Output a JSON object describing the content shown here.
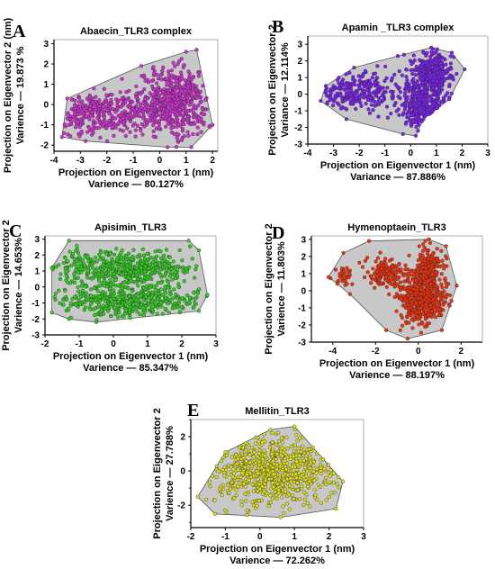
{
  "chart_data": [
    {
      "type": "scatter",
      "panel": "A",
      "title": "Abaecin_TLR3 complex",
      "xlabel": "Projection on Eigenvector 1 (nm)",
      "xlabel2": "Varience — 80.127%",
      "ylabel": "Projection on Eigenvector 2 (nm)",
      "ylabel2": "Varience — 19.873 %",
      "xlim": [
        -4,
        2.2
      ],
      "ylim": [
        -2.3,
        3.2
      ],
      "xticks": [
        -4,
        -3,
        -2,
        -1,
        0,
        1,
        2
      ],
      "yticks": [
        -2,
        -1,
        0,
        1,
        2,
        3
      ],
      "point_color": "#cc33cc",
      "hull_color": "#c8c8c8",
      "hull": [
        [
          -3.7,
          -1.6
        ],
        [
          -3.5,
          0.3
        ],
        [
          -0.7,
          1.9
        ],
        [
          1.0,
          2.6
        ],
        [
          1.4,
          2.7
        ],
        [
          2.0,
          -1.0
        ],
        [
          1.2,
          -2.1
        ],
        [
          0.3,
          -2.1
        ],
        [
          -2.8,
          -1.8
        ]
      ],
      "clusters": [
        {
          "cx": 0.6,
          "cy": 0.2,
          "sx": 0.7,
          "sy": 0.8,
          "n": 520
        },
        {
          "cx": -1.7,
          "cy": -0.4,
          "sx": 0.9,
          "sy": 0.55,
          "n": 260
        },
        {
          "cx": -3.0,
          "cy": -0.6,
          "sx": 0.45,
          "sy": 0.6,
          "n": 90
        }
      ]
    },
    {
      "type": "scatter",
      "panel": "B",
      "title": "Apamin _TLR3 complex",
      "xlabel": "Projection on Eigenvector 1 (nm)",
      "xlabel2": "Variance — 87.886%",
      "ylabel": "Projection on Eigenvector 2",
      "ylabel2": "Variance — 12.114%",
      "xlim": [
        -4,
        3
      ],
      "ylim": [
        -3,
        3.5
      ],
      "xticks": [
        -4,
        -3,
        -2,
        -1,
        0,
        1,
        2,
        3
      ],
      "yticks": [
        -3,
        -2,
        -1,
        0,
        1,
        2,
        3
      ],
      "point_color": "#7a22ee",
      "hull_color": "#c8c8c8",
      "hull": [
        [
          -3.5,
          -0.4
        ],
        [
          -3.3,
          0.5
        ],
        [
          -2.2,
          1.6
        ],
        [
          -0.5,
          2.3
        ],
        [
          0.8,
          2.8
        ],
        [
          1.6,
          2.5
        ],
        [
          2.1,
          1.5
        ],
        [
          1.5,
          -0.3
        ],
        [
          0.5,
          -1.5
        ],
        [
          0.2,
          -2.5
        ],
        [
          -0.3,
          -2.4
        ],
        [
          -2.5,
          -1.5
        ]
      ],
      "clusters": [
        {
          "cx": 0.8,
          "cy": 1.3,
          "sx": 0.4,
          "sy": 0.6,
          "n": 330
        },
        {
          "cx": 0.5,
          "cy": -0.7,
          "sx": 0.45,
          "sy": 0.7,
          "n": 300
        },
        {
          "cx": -2.0,
          "cy": 0.2,
          "sx": 0.8,
          "sy": 0.55,
          "n": 250
        }
      ]
    },
    {
      "type": "scatter",
      "panel": "C",
      "title": "Apisimin_TLR3",
      "xlabel": "Projection on Eigenvector 1 (nm)",
      "xlabel2": "Varience — 85.347%",
      "ylabel": "Projection on Eigenvector 2",
      "ylabel2": "Varience — 14.653%",
      "xlim": [
        -2,
        3
      ],
      "ylim": [
        -3,
        3.2
      ],
      "xticks": [
        -2,
        -1,
        0,
        1,
        2,
        3
      ],
      "yticks": [
        -3,
        -2,
        -1,
        0,
        1,
        2,
        3
      ],
      "point_color": "#33cc22",
      "hull_color": "#c8c8c8",
      "hull": [
        [
          -1.8,
          -1.6
        ],
        [
          -1.8,
          1.2
        ],
        [
          -1.3,
          2.9
        ],
        [
          2.2,
          2.9
        ],
        [
          2.5,
          2.3
        ],
        [
          2.75,
          -0.5
        ],
        [
          2.5,
          -1.5
        ],
        [
          -0.5,
          -2.2
        ],
        [
          -1.3,
          -2.0
        ]
      ],
      "clusters": [
        {
          "cx": 0.3,
          "cy": 1.2,
          "sx": 1.1,
          "sy": 0.55,
          "n": 450
        },
        {
          "cx": 0.4,
          "cy": -0.9,
          "sx": 1.1,
          "sy": 0.55,
          "n": 450
        }
      ]
    },
    {
      "type": "scatter",
      "panel": "D",
      "title": "Hymenoptaein_TLR3",
      "xlabel": "Projection on Eigenvector 1 (nm)",
      "xlabel2": "Varience — 88.197%",
      "ylabel": "Projection on Eigenvector 2",
      "ylabel2": "Varience — 11.803%",
      "xlim": [
        -5,
        3
      ],
      "ylim": [
        -3,
        3.2
      ],
      "xticks": [
        -4,
        -2,
        0,
        2
      ],
      "yticks": [
        -3,
        -2,
        -1,
        0,
        1,
        2,
        3
      ],
      "point_color": "#ee3311",
      "hull_color": "#c8c8c8",
      "hull": [
        [
          -4.2,
          0.8
        ],
        [
          -3.5,
          2.2
        ],
        [
          -2.3,
          2.9
        ],
        [
          0.5,
          3.0
        ],
        [
          1.3,
          2.6
        ],
        [
          1.8,
          0.3
        ],
        [
          1.1,
          -2.3
        ],
        [
          -0.5,
          -2.8
        ],
        [
          -1.5,
          -2.3
        ],
        [
          -3.2,
          -0.2
        ]
      ],
      "clusters": [
        {
          "cx": 0.2,
          "cy": -0.4,
          "sx": 0.55,
          "sy": 0.8,
          "n": 500
        },
        {
          "cx": 0.4,
          "cy": 1.2,
          "sx": 0.35,
          "sy": 0.6,
          "n": 200
        },
        {
          "cx": -1.6,
          "cy": 1.0,
          "sx": 0.5,
          "sy": 0.45,
          "n": 140
        },
        {
          "cx": -3.6,
          "cy": 0.9,
          "sx": 0.25,
          "sy": 0.25,
          "n": 30
        }
      ]
    },
    {
      "type": "scatter",
      "panel": "E",
      "title": "Mellitin_TLR3",
      "xlabel": "Projection on Eigenvector 1 (nm)",
      "xlabel2": "Varience — 72.262%",
      "ylabel": "Projection on Eigenvector 2",
      "ylabel2": "Varience — 27.788%",
      "xlim": [
        -2,
        3
      ],
      "ylim": [
        -3.3,
        3
      ],
      "xticks": [
        -2,
        -1,
        0,
        1,
        2,
        3
      ],
      "yticks": [
        -2,
        0,
        2
      ],
      "yticks_minor": [
        -3,
        -1,
        1,
        3
      ],
      "point_color": "#dddd22",
      "hull_color": "#c8c8c8",
      "hull": [
        [
          -1.8,
          -1.5
        ],
        [
          -1.0,
          1.1
        ],
        [
          0.3,
          2.4
        ],
        [
          1.0,
          2.6
        ],
        [
          2.4,
          -0.6
        ],
        [
          2.2,
          -2.2
        ],
        [
          0.6,
          -2.7
        ],
        [
          -1.3,
          -2.5
        ]
      ],
      "clusters": [
        {
          "cx": 0.3,
          "cy": 0.1,
          "sx": 0.95,
          "sy": 1.0,
          "n": 700
        }
      ]
    }
  ]
}
